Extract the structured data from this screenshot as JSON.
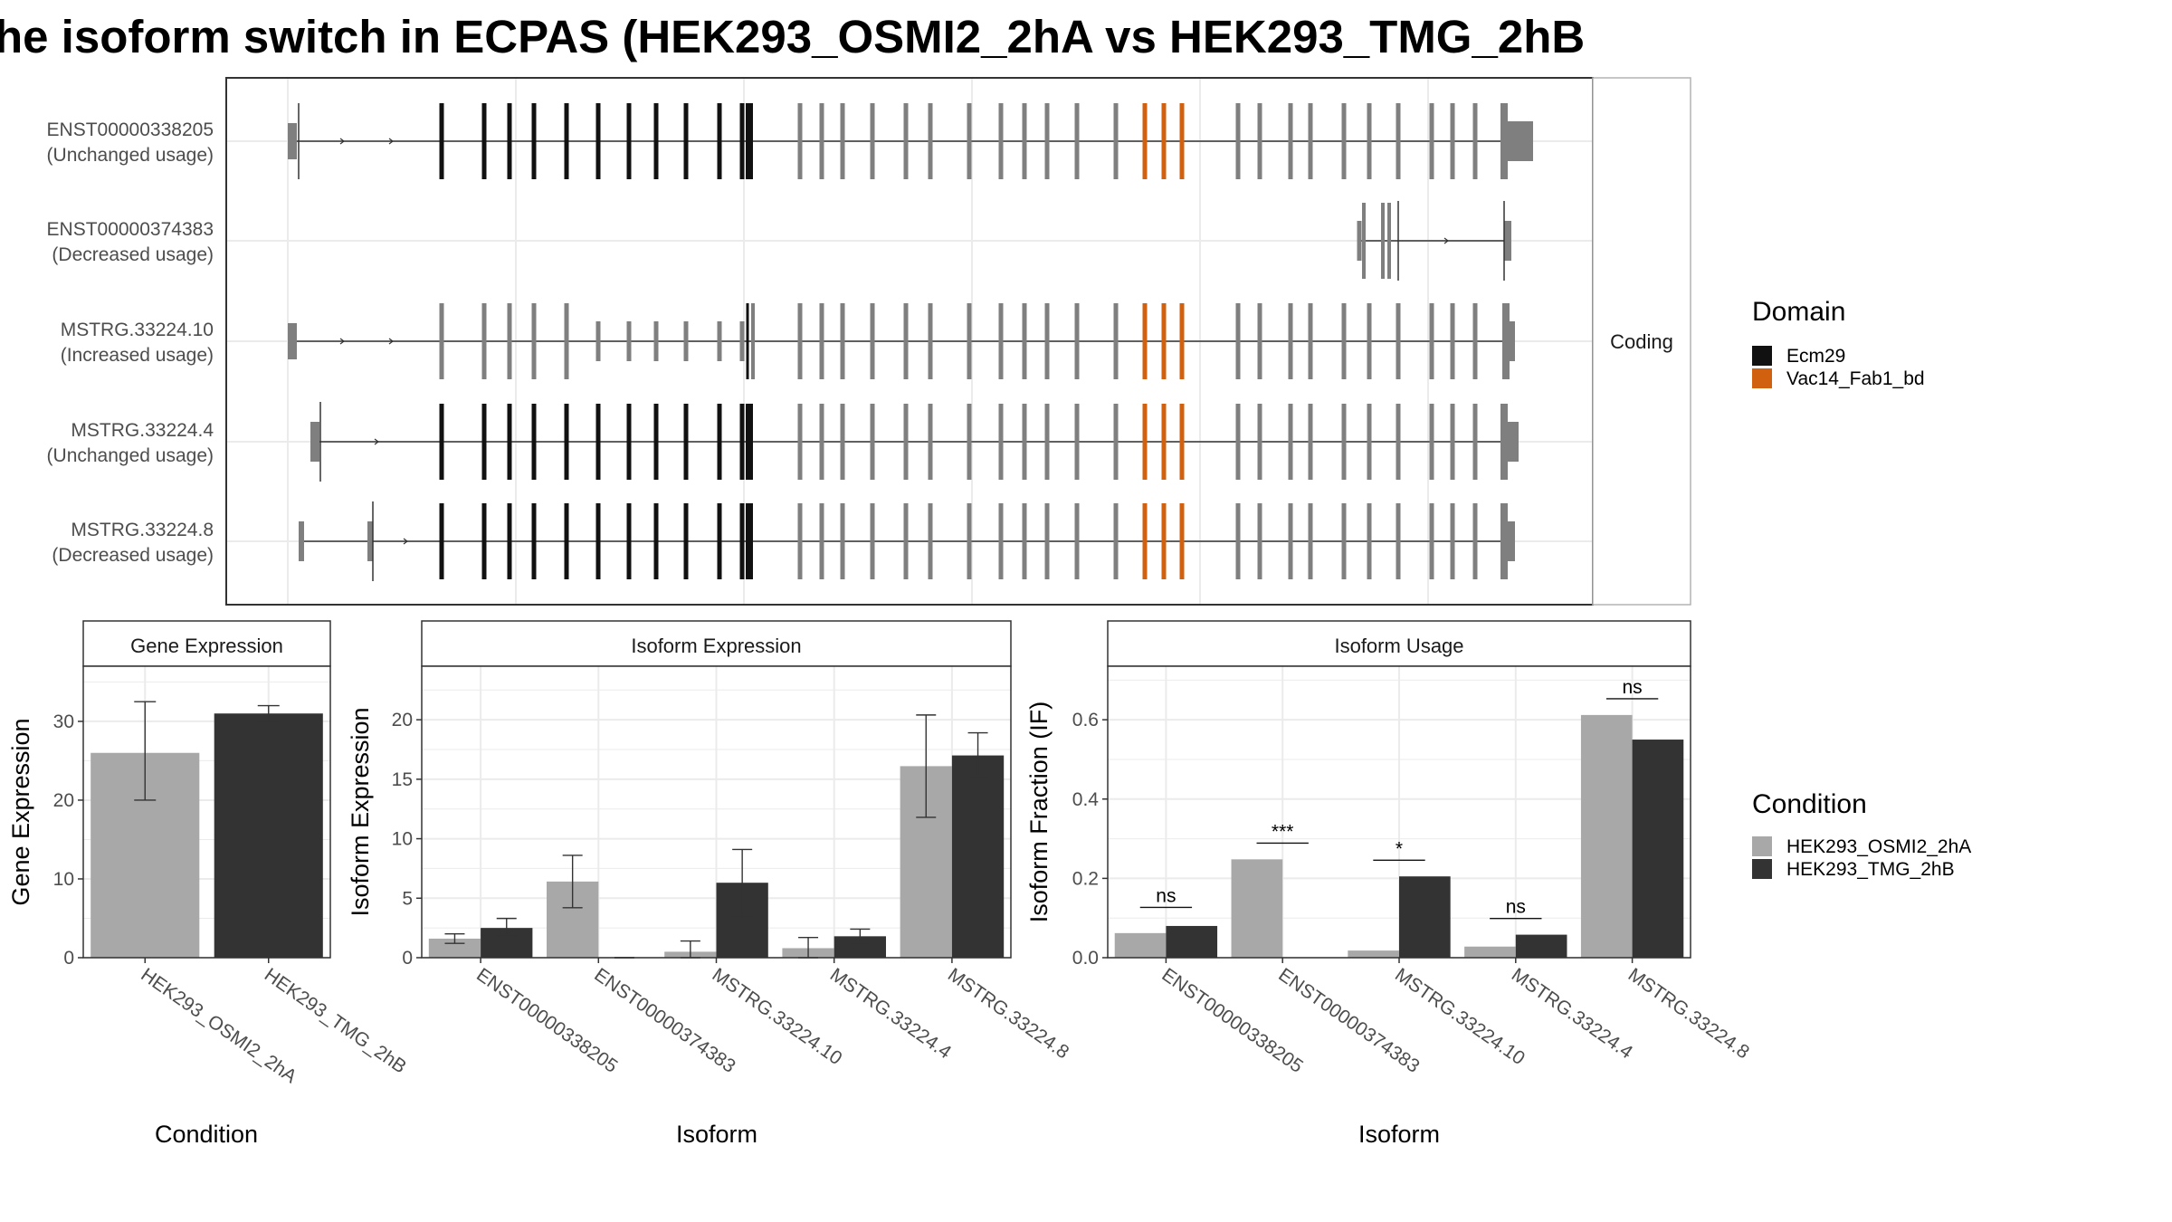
{
  "title": "he isoform switch in ECPAS (HEK293_OSMI2_2hA vs HEK293_TMG_2hB",
  "colors": {
    "ecm29": "#111111",
    "vac14": "#d2610f",
    "noncoding_exon": "#7f7f7f",
    "cond_a": "#a8a8a8",
    "cond_b": "#333333",
    "grid": "#ebebeb",
    "strip_fill": "#ffffff"
  },
  "structure_panel": {
    "facet_label": "Coding",
    "transcripts": [
      {
        "name": "ENST00000338205",
        "usage": "(Unchanged usage)"
      },
      {
        "name": "ENST00000374383",
        "usage": "(Decreased usage)"
      },
      {
        "name": "MSTRG.33224.10",
        "usage": "(Increased usage)"
      },
      {
        "name": "MSTRG.33224.4",
        "usage": "(Unchanged usage)"
      },
      {
        "name": "MSTRG.33224.8",
        "usage": "(Decreased usage)"
      }
    ]
  },
  "legend_domain": {
    "title": "Domain",
    "items": [
      {
        "label": "Ecm29",
        "color": "#111111"
      },
      {
        "label": "Vac14_Fab1_bd",
        "color": "#d2610f"
      }
    ]
  },
  "legend_condition": {
    "title": "Condition",
    "items": [
      {
        "label": "HEK293_OSMI2_2hA",
        "color": "#a8a8a8"
      },
      {
        "label": "HEK293_TMG_2hB",
        "color": "#333333"
      }
    ]
  },
  "chart_data": [
    {
      "type": "bar",
      "title": "Gene Expression",
      "xlabel": "Condition",
      "ylabel": "Gene Expression",
      "categories": [
        "HEK293_OSMI2_2hA",
        "HEK293_TMG_2hB"
      ],
      "values": [
        26,
        31
      ],
      "error_low": [
        20,
        30
      ],
      "error_high": [
        32.5,
        32
      ],
      "ylim": [
        0,
        37
      ],
      "yticks": [
        0,
        10,
        20,
        30
      ]
    },
    {
      "type": "bar",
      "title": "Isoform Expression",
      "xlabel": "Isoform",
      "ylabel": "Isoform Expression",
      "categories": [
        "ENST00000338205",
        "ENST00000374383",
        "MSTRG.33224.10",
        "MSTRG.33224.4",
        "MSTRG.33224.8"
      ],
      "series": [
        {
          "name": "HEK293_OSMI2_2hA",
          "values": [
            1.6,
            6.4,
            0.5,
            0.8,
            16.1
          ],
          "error_low": [
            1.2,
            4.2,
            0.0,
            0.0,
            11.8
          ],
          "error_high": [
            2.0,
            8.6,
            1.4,
            1.7,
            20.4
          ]
        },
        {
          "name": "HEK293_TMG_2hB",
          "values": [
            2.5,
            0.0,
            6.3,
            1.8,
            17.0
          ],
          "error_low": [
            1.8,
            0.0,
            3.4,
            1.2,
            15.2
          ],
          "error_high": [
            3.3,
            0.0,
            9.1,
            2.4,
            18.9
          ]
        }
      ],
      "ylim": [
        0,
        24.5
      ],
      "yticks": [
        0,
        5,
        10,
        15,
        20
      ]
    },
    {
      "type": "bar",
      "title": "Isoform Usage",
      "xlabel": "Isoform",
      "ylabel": "Isoform Fraction (IF)",
      "categories": [
        "ENST00000338205",
        "ENST00000374383",
        "MSTRG.33224.10",
        "MSTRG.33224.4",
        "MSTRG.33224.8"
      ],
      "series": [
        {
          "name": "HEK293_OSMI2_2hA",
          "values": [
            0.062,
            0.248,
            0.018,
            0.028,
            0.612
          ]
        },
        {
          "name": "HEK293_TMG_2hB",
          "values": [
            0.08,
            0.0,
            0.205,
            0.058,
            0.55
          ]
        }
      ],
      "significance": [
        "ns",
        "***",
        "*",
        "ns",
        "ns"
      ],
      "ylim": [
        0,
        0.735
      ],
      "yticks": [
        "0.0",
        "0.2",
        "0.4",
        "0.6"
      ]
    }
  ]
}
